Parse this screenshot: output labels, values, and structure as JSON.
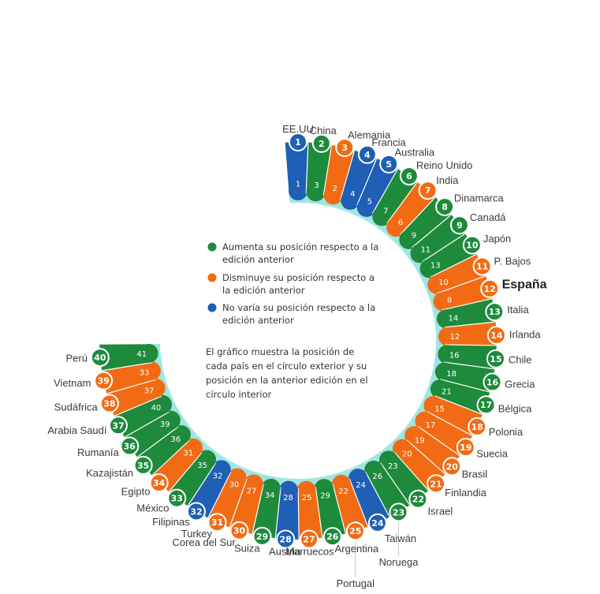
{
  "colors": {
    "up": "#1e8a3c",
    "down": "#f26b14",
    "same": "#1f5fb5",
    "ring": "#9fe6e1",
    "leader": "#c8c8c8"
  },
  "legend": {
    "up": [
      "Aumenta su posición respecto a la",
      "edición anterior"
    ],
    "down": [
      "Disminuye su posición respecto a",
      "la edición anterior"
    ],
    "same": [
      "No varía su posición respecto a la",
      "edición anterior"
    ]
  },
  "note": [
    "El gráfico muestra la posición de",
    "cada país en el círculo exterior y su",
    "posición en la anterior edición en el",
    "círculo interior"
  ],
  "chart_data": {
    "type": "radial-bar",
    "highlight": "España",
    "rankings": [
      {
        "country": "EE.UU",
        "current": 1,
        "previous": 1,
        "change": "same"
      },
      {
        "country": "China",
        "current": 2,
        "previous": 3,
        "change": "up"
      },
      {
        "country": "Alemania",
        "current": 3,
        "previous": 2,
        "change": "down"
      },
      {
        "country": "Francia",
        "current": 4,
        "previous": 4,
        "change": "same"
      },
      {
        "country": "Australia",
        "current": 5,
        "previous": 5,
        "change": "same"
      },
      {
        "country": "Reino Unido",
        "current": 6,
        "previous": 7,
        "change": "up"
      },
      {
        "country": "India",
        "current": 7,
        "previous": 6,
        "change": "down"
      },
      {
        "country": "Dinamarca",
        "current": 8,
        "previous": 9,
        "change": "up"
      },
      {
        "country": "Canadá",
        "current": 9,
        "previous": 11,
        "change": "up"
      },
      {
        "country": "Japón",
        "current": 10,
        "previous": 13,
        "change": "up"
      },
      {
        "country": "P. Bajos",
        "current": 11,
        "previous": 10,
        "change": "down"
      },
      {
        "country": "España",
        "current": 12,
        "previous": 8,
        "change": "down"
      },
      {
        "country": "Italia",
        "current": 13,
        "previous": 14,
        "change": "up"
      },
      {
        "country": "Irlanda",
        "current": 14,
        "previous": 12,
        "change": "down"
      },
      {
        "country": "Chile",
        "current": 15,
        "previous": 16,
        "change": "up"
      },
      {
        "country": "Grecia",
        "current": 16,
        "previous": 18,
        "change": "up"
      },
      {
        "country": "Bélgica",
        "current": 17,
        "previous": 21,
        "change": "up"
      },
      {
        "country": "Polonia",
        "current": 18,
        "previous": 15,
        "change": "down"
      },
      {
        "country": "Suecia",
        "current": 19,
        "previous": 17,
        "change": "down"
      },
      {
        "country": "Brasil",
        "current": 20,
        "previous": 19,
        "change": "down"
      },
      {
        "country": "Finlandia",
        "current": 21,
        "previous": 20,
        "change": "down"
      },
      {
        "country": "Israel",
        "current": 22,
        "previous": 23,
        "change": "up"
      },
      {
        "country": "Noruega",
        "current": 23,
        "previous": 26,
        "change": "up"
      },
      {
        "country": "Taiwán",
        "current": 24,
        "previous": 24,
        "change": "same"
      },
      {
        "country": "Portugal",
        "current": 25,
        "previous": 22,
        "change": "down"
      },
      {
        "country": "Argentina",
        "current": 26,
        "previous": 29,
        "change": "up"
      },
      {
        "country": "Marruecos",
        "current": 27,
        "previous": 25,
        "change": "down"
      },
      {
        "country": "Austria",
        "current": 28,
        "previous": 28,
        "change": "same"
      },
      {
        "country": "Suiza",
        "current": 29,
        "previous": 34,
        "change": "up"
      },
      {
        "country": "Corea del Sur",
        "current": 30,
        "previous": 27,
        "change": "down"
      },
      {
        "country": "Turkey",
        "current": 31,
        "previous": 30,
        "change": "down"
      },
      {
        "country": "Filipinas",
        "current": 32,
        "previous": 32,
        "change": "same"
      },
      {
        "country": "México",
        "current": 33,
        "previous": 35,
        "change": "up"
      },
      {
        "country": "Egipto",
        "current": 34,
        "previous": 31,
        "change": "down"
      },
      {
        "country": "Kazajistán",
        "current": 35,
        "previous": 36,
        "change": "up"
      },
      {
        "country": "Rumanía",
        "current": 36,
        "previous": 39,
        "change": "up"
      },
      {
        "country": "Arabia Saudí",
        "current": 37,
        "previous": 40,
        "change": "up"
      },
      {
        "country": "Sudáfrica",
        "current": 38,
        "previous": 37,
        "change": "down"
      },
      {
        "country": "Vietnam",
        "current": 39,
        "previous": 33,
        "change": "down"
      },
      {
        "country": "Perú",
        "current": 40,
        "previous": 41,
        "change": "up"
      }
    ]
  }
}
